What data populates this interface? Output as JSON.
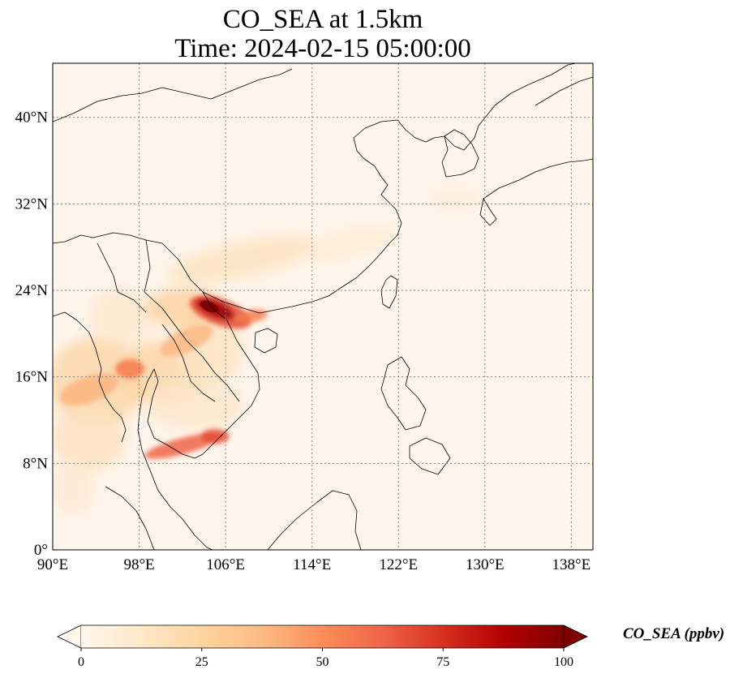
{
  "title": {
    "line1": "CO_SEA at 1.5km",
    "line2": "Time: 2024-02-15 05:00:00"
  },
  "map": {
    "lon_range": [
      90,
      140
    ],
    "lat_range": [
      0,
      45
    ],
    "lon_ticks": [
      90,
      98,
      106,
      114,
      122,
      130,
      138
    ],
    "lon_tick_labels": [
      "90°E",
      "98°E",
      "106°E",
      "114°E",
      "122°E",
      "130°E",
      "138°E"
    ],
    "lat_ticks": [
      0,
      8,
      16,
      24,
      32,
      40
    ],
    "lat_tick_labels": [
      "0°",
      "8°N",
      "16°N",
      "24°N",
      "32°N",
      "40°N"
    ],
    "gridlines": "dotted",
    "background_color": "#fff5eb",
    "coastline_color": "#000000"
  },
  "colorbar": {
    "label": "CO_SEA (ppbv)",
    "colormap": "OrRd",
    "min": 0,
    "max": 100,
    "extend": "both",
    "ticks": [
      0,
      25,
      50,
      75,
      100
    ],
    "tick_labels": [
      "0",
      "25",
      "50",
      "75",
      "100"
    ],
    "colors": [
      "#fff7ec",
      "#fee8c8",
      "#fdd49e",
      "#fdbb84",
      "#fc8d59",
      "#ef6548",
      "#d7301f",
      "#b30000",
      "#7f0000"
    ]
  }
}
